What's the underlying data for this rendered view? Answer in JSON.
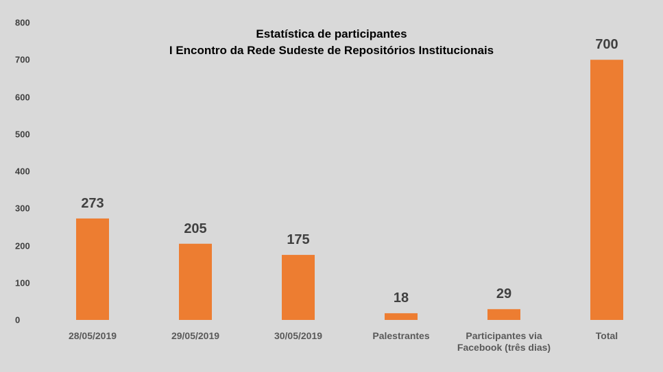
{
  "chart_data": {
    "type": "bar",
    "title": "Estatística de participantes",
    "subtitle": "I Encontro da Rede Sudeste de Repositórios Institucionais",
    "categories": [
      "28/05/2019",
      "29/05/2019",
      "30/05/2019",
      "Palestrantes",
      "Participantes via Facebook (três dias)",
      "Total"
    ],
    "values": [
      273,
      205,
      175,
      18,
      29,
      700
    ],
    "color": "#ed7d31",
    "ylim": [
      0,
      800
    ],
    "yticks": [
      0,
      100,
      200,
      300,
      400,
      500,
      600,
      700,
      800
    ],
    "grid": false
  }
}
